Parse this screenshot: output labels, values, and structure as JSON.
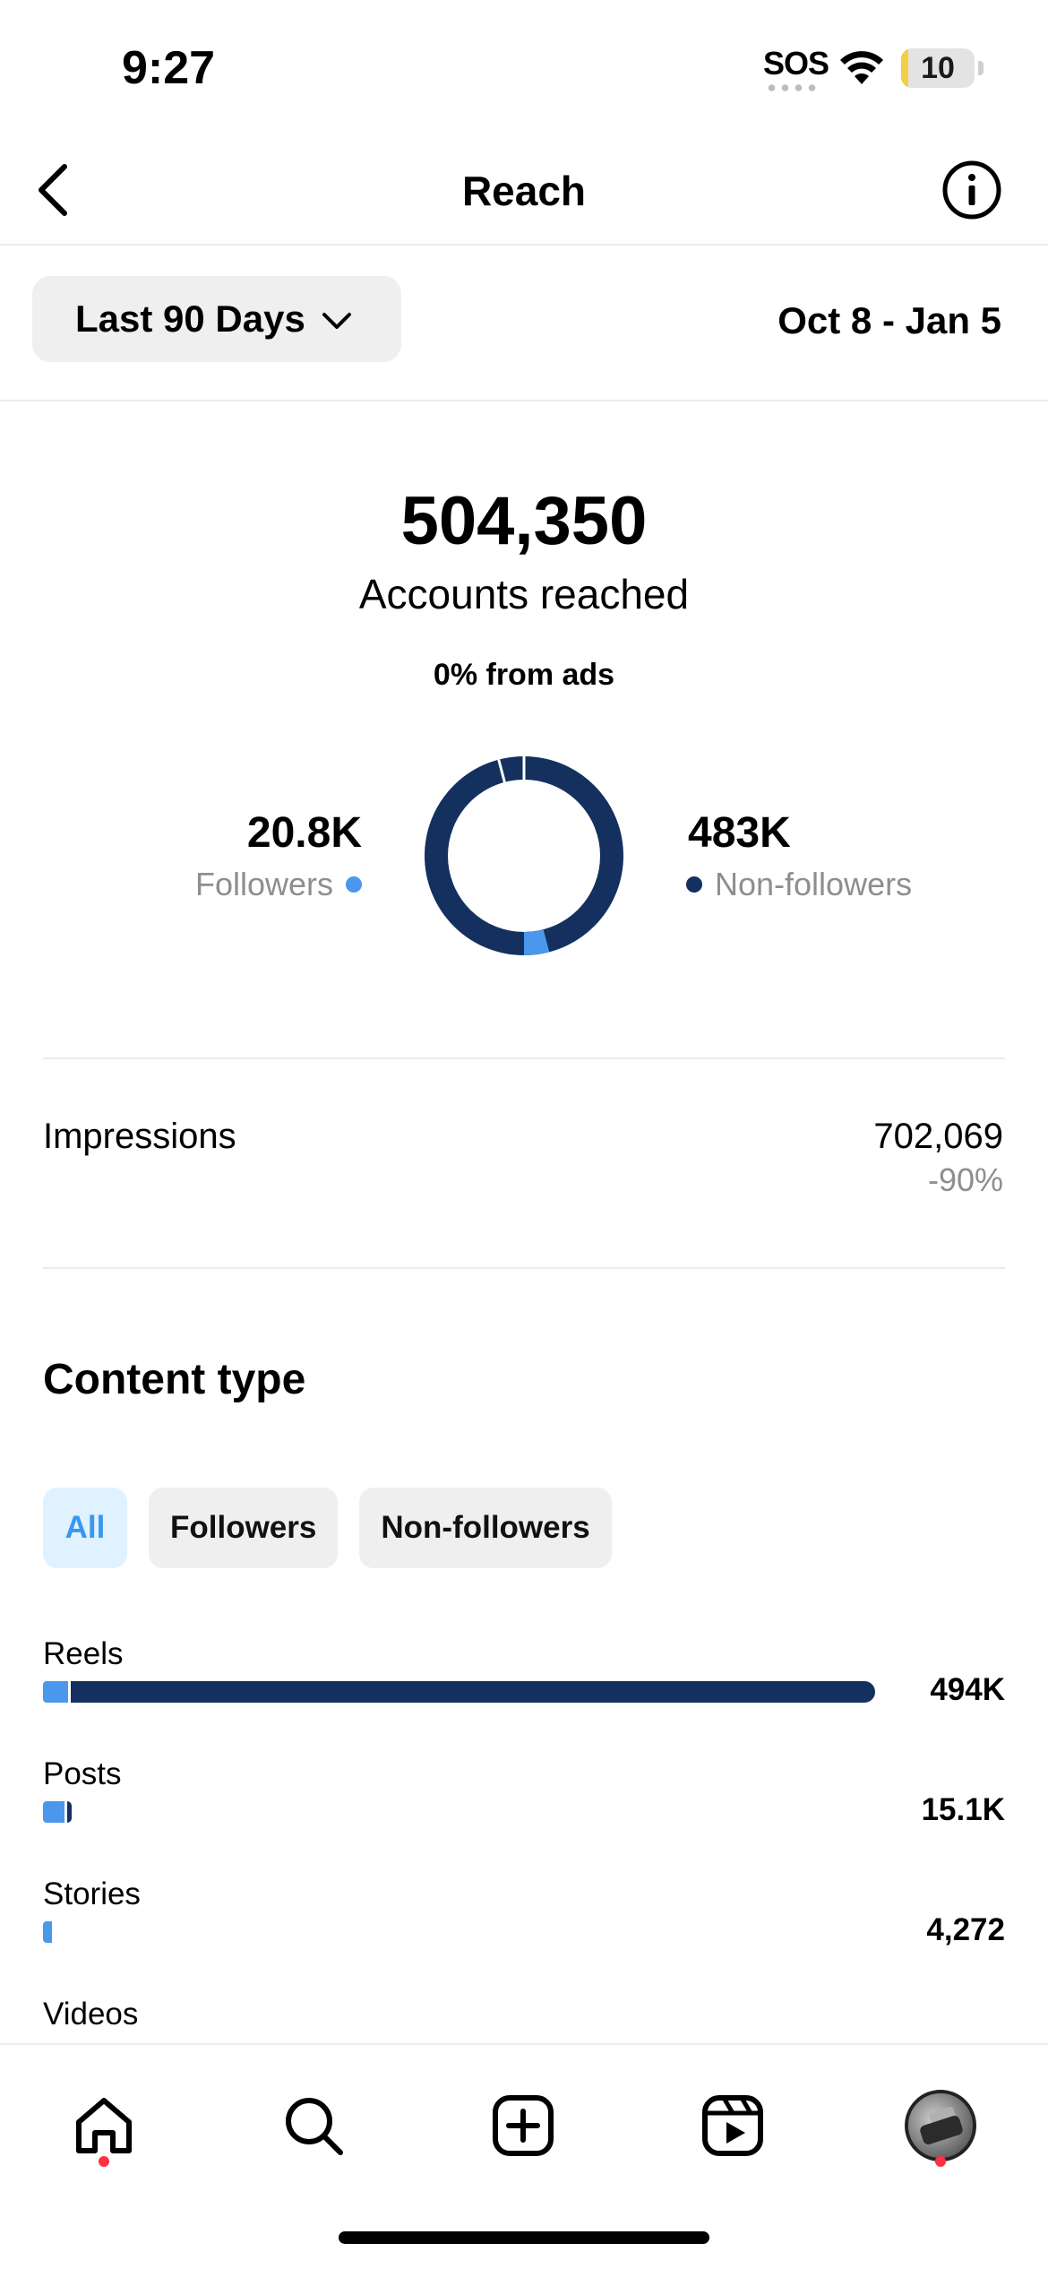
{
  "status_bar": {
    "time": "9:27",
    "sos": "SOS",
    "battery_level": "10",
    "battery_fraction": 0.1,
    "battery_color": "#f2cf44"
  },
  "header": {
    "title": "Reach",
    "back_icon": "chevron-left-icon",
    "info_icon": "info-circle-icon"
  },
  "range": {
    "selected": "Last 90 Days",
    "dates": "Oct 8 - Jan 5"
  },
  "summary": {
    "accounts_reached": "504,350",
    "accounts_label": "Accounts reached",
    "ads": "0% from ads",
    "followers_value": "20.8K",
    "followers_label": "Followers",
    "nonfollowers_value": "483K",
    "nonfollowers_label": "Non-followers",
    "followers_share": 0.041,
    "colors": {
      "followers": "#4a97ec",
      "nonfollowers": "#14305f"
    }
  },
  "impressions": {
    "label": "Impressions",
    "value": "702,069",
    "change": "-90%"
  },
  "content_type": {
    "title": "Content type",
    "filters": [
      "All",
      "Followers",
      "Non-followers"
    ],
    "active_filter": "All",
    "rows": [
      {
        "label": "Reels",
        "value": "494K",
        "bar_fraction": 0.865,
        "followers_fraction": 0.026
      },
      {
        "label": "Posts",
        "value": "15.1K",
        "bar_fraction": 0.03,
        "followers_fraction": 0.022
      },
      {
        "label": "Stories",
        "value": "4,272",
        "bar_fraction": 0.009,
        "followers_fraction": 0.009
      },
      {
        "label": "Videos",
        "value": "",
        "bar_fraction": 0,
        "followers_fraction": 0
      }
    ]
  },
  "tab_bar": {
    "items": [
      "home-icon",
      "search-icon",
      "create-icon",
      "reels-icon",
      "profile-avatar"
    ],
    "notification_color": "#ff3040"
  }
}
